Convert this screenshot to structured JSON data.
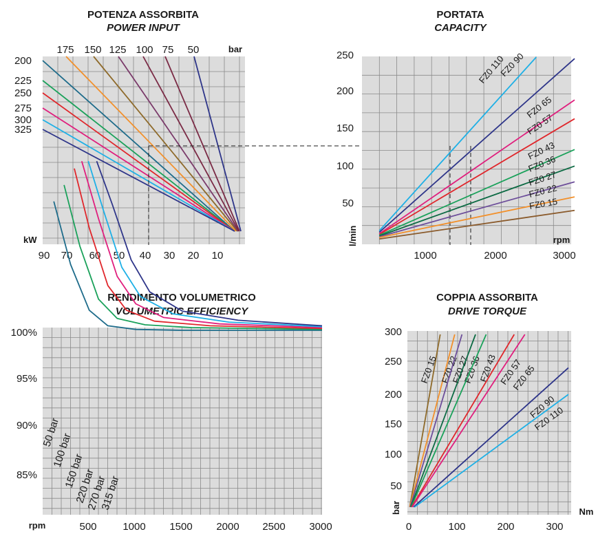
{
  "colors": {
    "brown": "#8a5a2b",
    "orange": "#f2902b",
    "purple": "#6d4e9a",
    "darkgreen": "#0c6a43",
    "green": "#1aa15a",
    "red": "#e0262b",
    "magenta": "#e01e7d",
    "navy": "#2e3589",
    "cyan": "#1eb0e6",
    "teal": "#1d6b8a",
    "olive": "#8e6a2a",
    "maroon": "#7a2a45",
    "plum": "#7a3a6a"
  },
  "chart_data": [
    {
      "id": "power",
      "type": "line",
      "title": "POTENZA ASSORBITA",
      "subtitle": "POWER INPUT",
      "xlabel": "kW",
      "top_unit": "bar",
      "xlim": [
        90,
        0
      ],
      "x_ticks": [
        "90",
        "70",
        "60",
        "50",
        "40",
        "30",
        "20",
        "10"
      ],
      "top_ticks": [
        "175",
        "150",
        "125",
        "100",
        "75",
        "50"
      ],
      "left_ticks": [
        "200",
        "225",
        "250",
        "275",
        "300",
        "325"
      ],
      "series": [
        {
          "name": "200",
          "color": "navy-top",
          "x": [
            88,
            4
          ],
          "y": [
            1.0,
            0.06
          ]
        },
        {
          "name": "225",
          "x": [
            88,
            4
          ],
          "y": [
            0.88,
            0.06
          ]
        },
        {
          "name": "250",
          "x": [
            88,
            4
          ],
          "y": [
            0.8,
            0.06
          ]
        },
        {
          "name": "275",
          "x": [
            88,
            4
          ],
          "y": [
            0.73,
            0.06
          ]
        },
        {
          "name": "300",
          "x": [
            88,
            4
          ],
          "y": [
            0.66,
            0.06
          ]
        },
        {
          "name": "325",
          "x": [
            88,
            4
          ],
          "y": [
            0.6,
            0.06
          ]
        },
        {
          "name": "175",
          "x": [
            75,
            4
          ],
          "y": [
            1.05,
            0.06
          ]
        },
        {
          "name": "150",
          "x": [
            64,
            4
          ],
          "y": [
            1.05,
            0.06
          ]
        },
        {
          "name": "125",
          "x": [
            50,
            3
          ],
          "y": [
            1.05,
            0.06
          ]
        },
        {
          "name": "100",
          "x": [
            40,
            3
          ],
          "y": [
            1.05,
            0.06
          ]
        },
        {
          "name": "75",
          "x": [
            30,
            2
          ],
          "y": [
            1.05,
            0.06
          ]
        },
        {
          "name": "50",
          "x": [
            20,
            1
          ],
          "y": [
            1.05,
            0.06
          ]
        }
      ]
    },
    {
      "id": "capacity",
      "type": "line",
      "title": "PORTATA",
      "subtitle": "CAPACITY",
      "xlabel": "rpm",
      "ylabel": "l/min",
      "xlim": [
        0,
        3000
      ],
      "ylim": [
        0,
        250
      ],
      "x_ticks": [
        "1000",
        "2000",
        "3000"
      ],
      "y_ticks": [
        "50",
        "100",
        "150",
        "200",
        "250"
      ],
      "series": [
        {
          "name": "FZ0 110",
          "x": [
            200,
            2450
          ],
          "y": [
            19,
            250
          ]
        },
        {
          "name": "FZ0 90",
          "x": [
            200,
            3000
          ],
          "y": [
            17,
            248
          ]
        },
        {
          "name": "FZ0 65",
          "x": [
            200,
            3000
          ],
          "y": [
            15,
            193
          ]
        },
        {
          "name": "FZ0 57",
          "x": [
            200,
            3000
          ],
          "y": [
            14,
            168
          ]
        },
        {
          "name": "FZ0 43",
          "x": [
            200,
            3000
          ],
          "y": [
            13,
            127
          ]
        },
        {
          "name": "FZ0 36",
          "x": [
            200,
            3000
          ],
          "y": [
            12,
            105
          ]
        },
        {
          "name": "FZ0 27",
          "x": [
            200,
            3000
          ],
          "y": [
            11,
            84
          ]
        },
        {
          "name": "FZ0 22",
          "x": [
            200,
            3000
          ],
          "y": [
            10,
            64
          ]
        },
        {
          "name": "FZ0 15",
          "x": [
            200,
            3000
          ],
          "y": [
            8,
            46
          ]
        }
      ]
    },
    {
      "id": "efficiency",
      "type": "line",
      "title": "RENDIMENTO VOLUMETRICO",
      "subtitle": "VOLUMETRIC EFFICIENCY",
      "xlabel": "rpm",
      "xlim": [
        0,
        3000
      ],
      "ylim": [
        82,
        100
      ],
      "x_ticks": [
        "500",
        "1000",
        "1500",
        "2000",
        "2500",
        "3000"
      ],
      "y_ticks": [
        "100%",
        "95%",
        "90%",
        "85%"
      ],
      "series": [
        {
          "name": "50 bar",
          "x": [
            120,
            300,
            500,
            700,
            1000,
            1500,
            3000
          ],
          "y": [
            85.6,
            92.5,
            97.5,
            99.2,
            99.6,
            99.7,
            99.7
          ]
        },
        {
          "name": "100 bar",
          "x": [
            230,
            400,
            600,
            800,
            1100,
            1600,
            3000
          ],
          "y": [
            83.8,
            90.5,
            96.3,
            98.4,
            99.1,
            99.4,
            99.6
          ]
        },
        {
          "name": "150 bar",
          "x": [
            340,
            500,
            700,
            900,
            1200,
            1800,
            3000
          ],
          "y": [
            82.0,
            88.5,
            94.8,
            97.5,
            98.7,
            99.2,
            99.5
          ]
        },
        {
          "name": "220 bar",
          "x": [
            420,
            600,
            800,
            1000,
            1300,
            1900,
            3000
          ],
          "y": [
            81.2,
            87.5,
            93.8,
            96.8,
            98.3,
            99.0,
            99.4
          ]
        },
        {
          "name": "270 bar",
          "x": [
            490,
            650,
            850,
            1050,
            1400,
            2000,
            3000
          ],
          "y": [
            81.2,
            86.5,
            92.8,
            96.0,
            97.9,
            98.8,
            99.3
          ]
        },
        {
          "name": "315 bar",
          "x": [
            580,
            750,
            950,
            1150,
            1500,
            2100,
            3000
          ],
          "y": [
            81.2,
            86.0,
            92.0,
            95.5,
            97.6,
            98.6,
            99.2
          ]
        }
      ]
    },
    {
      "id": "torque",
      "type": "line",
      "title": "COPPIA ASSORBITA",
      "subtitle": "DRIVE TORQUE",
      "xlabel": "Nm",
      "ylabel": "bar",
      "xlim": [
        0,
        330
      ],
      "ylim": [
        0,
        300
      ],
      "x_ticks": [
        "0",
        "100",
        "200",
        "300"
      ],
      "y_ticks": [
        "50",
        "100",
        "150",
        "200",
        "250",
        "300"
      ],
      "series": [
        {
          "name": "FZ0 15",
          "x": [
            2,
            65
          ],
          "y": [
            15,
            300
          ]
        },
        {
          "name": "FZ0 22",
          "x": [
            2,
            95
          ],
          "y": [
            15,
            300
          ]
        },
        {
          "name": "FZ0 27",
          "x": [
            3,
            110
          ],
          "y": [
            15,
            300
          ]
        },
        {
          "name": "FZ0 36",
          "x": [
            4,
            138
          ],
          "y": [
            15,
            300
          ]
        },
        {
          "name": "FZ0 43",
          "x": [
            5,
            160
          ],
          "y": [
            15,
            300
          ]
        },
        {
          "name": "FZ0 57",
          "x": [
            6,
            218
          ],
          "y": [
            15,
            300
          ]
        },
        {
          "name": "FZ0 65",
          "x": [
            7,
            240
          ],
          "y": [
            15,
            300
          ]
        },
        {
          "name": "FZ0 90",
          "x": [
            10,
            330
          ],
          "y": [
            15,
            245
          ]
        },
        {
          "name": "FZ0 110",
          "x": [
            12,
            330
          ],
          "y": [
            15,
            201
          ]
        }
      ]
    }
  ]
}
